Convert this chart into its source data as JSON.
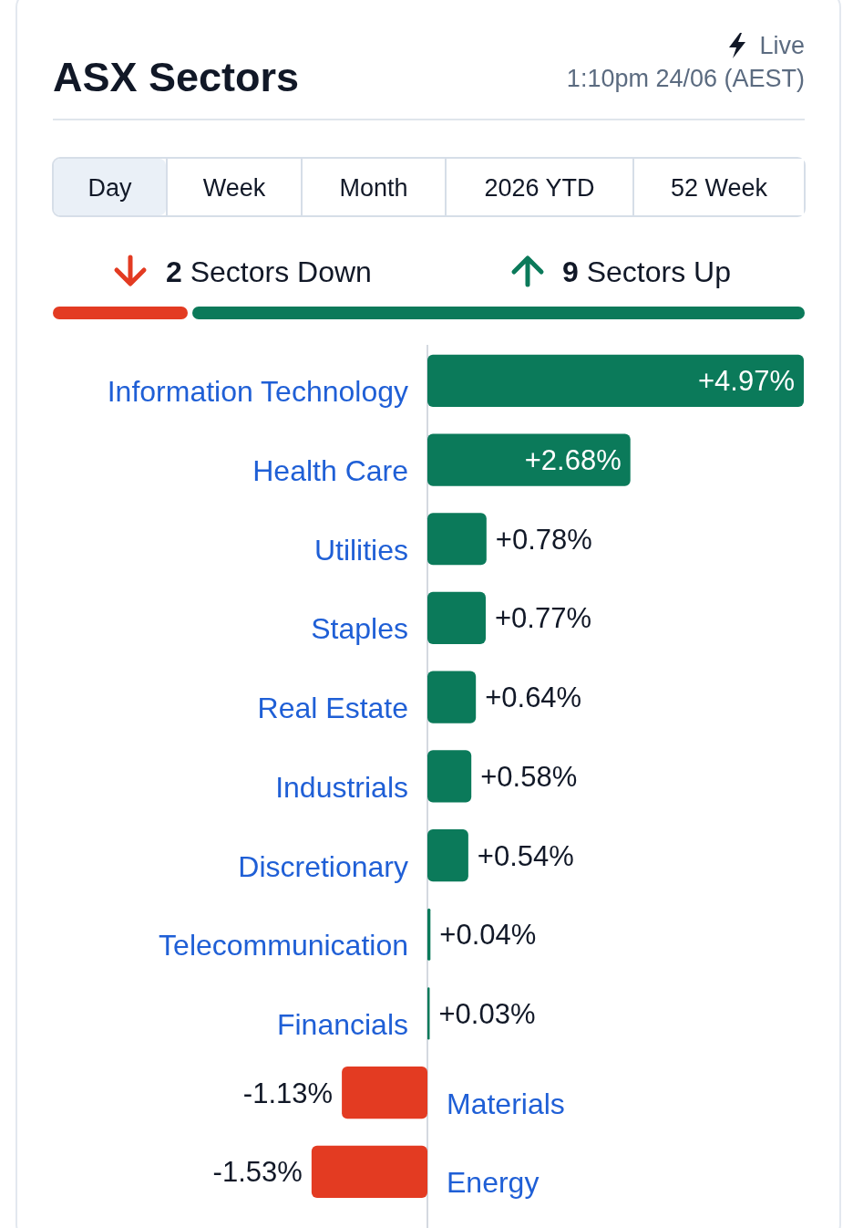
{
  "chart_data": {
    "type": "bar",
    "orientation": "horizontal",
    "title": "ASX Sectors",
    "annotations": [
      "Live",
      "1:10pm 24/06 (AEST)",
      "Day",
      "Week",
      "Month",
      "2026 YTD",
      "52 Week",
      "2 Sectors Down",
      "9 Sectors Up"
    ],
    "categories": [
      "Information Technology",
      "Health Care",
      "Utilities",
      "Staples",
      "Real Estate",
      "Industrials",
      "Discretionary",
      "Telecommunication",
      "Financials",
      "Materials",
      "Energy"
    ],
    "values": [
      4.97,
      2.68,
      0.78,
      0.77,
      0.64,
      0.58,
      0.54,
      0.04,
      0.03,
      -1.13,
      -1.53
    ],
    "value_labels": [
      "+4.97%",
      "+2.68%",
      "+0.78%",
      "+0.77%",
      "+0.64%",
      "+0.58%",
      "+0.54%",
      "+0.04%",
      "+0.03%",
      "-1.13%",
      "-1.53%"
    ],
    "colors": [
      "#0b7a5a",
      "#0b7a5a",
      "#0b7a5a",
      "#0b7a5a",
      "#0b7a5a",
      "#0b7a5a",
      "#0b7a5a",
      "#0b7a5a",
      "#0b7a5a",
      "#e33b22",
      "#e33b22"
    ]
  }
}
